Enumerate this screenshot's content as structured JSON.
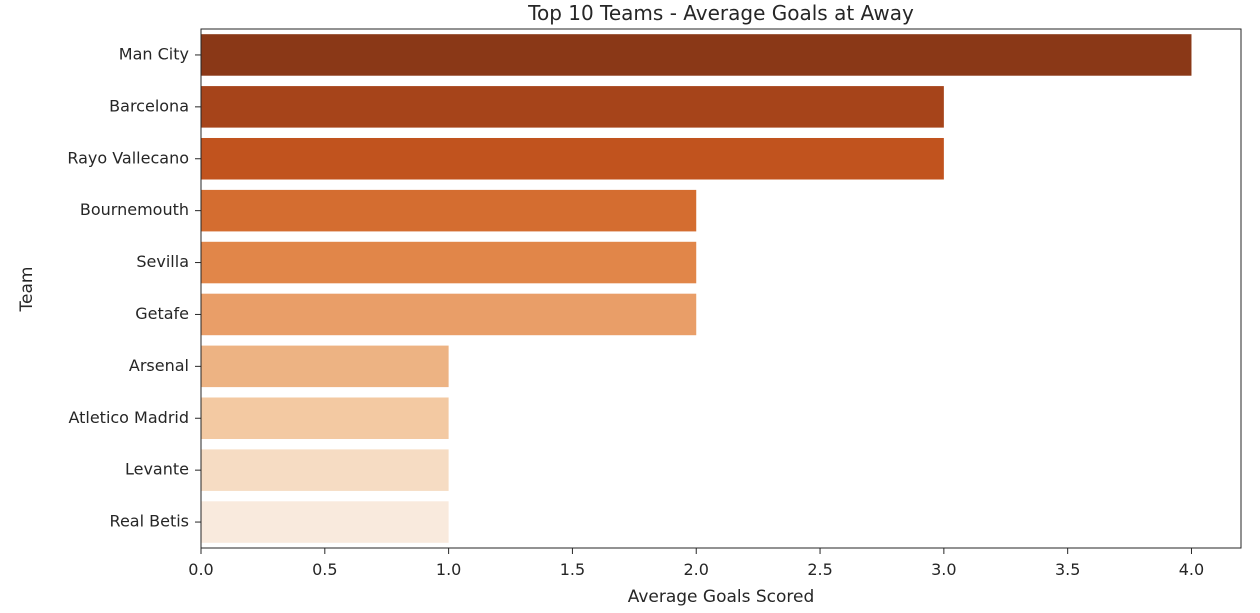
{
  "chart_data": {
    "type": "bar",
    "orientation": "horizontal",
    "title": "Top 10 Teams - Average Goals at Away",
    "xlabel": "Average Goals Scored",
    "ylabel": "Team",
    "categories": [
      "Man City",
      "Barcelona",
      "Rayo Vallecano",
      "Bournemouth",
      "Sevilla",
      "Getafe",
      "Arsenal",
      "Atletico Madrid",
      "Levante",
      "Real Betis"
    ],
    "values": [
      4.0,
      3.0,
      3.0,
      2.0,
      2.0,
      2.0,
      1.0,
      1.0,
      1.0,
      1.0
    ],
    "colors": [
      "#8a3817",
      "#a6441a",
      "#c1531e",
      "#d46d30",
      "#e18649",
      "#e99e68",
      "#edb383",
      "#f3c9a2",
      "#f6dcc3",
      "#f9eadd"
    ],
    "xlim": [
      0,
      4.2
    ],
    "xticks": [
      "0.0",
      "0.5",
      "1.0",
      "1.5",
      "2.0",
      "2.5",
      "3.0",
      "3.5",
      "4.0"
    ],
    "grid": false,
    "legend": "none"
  }
}
